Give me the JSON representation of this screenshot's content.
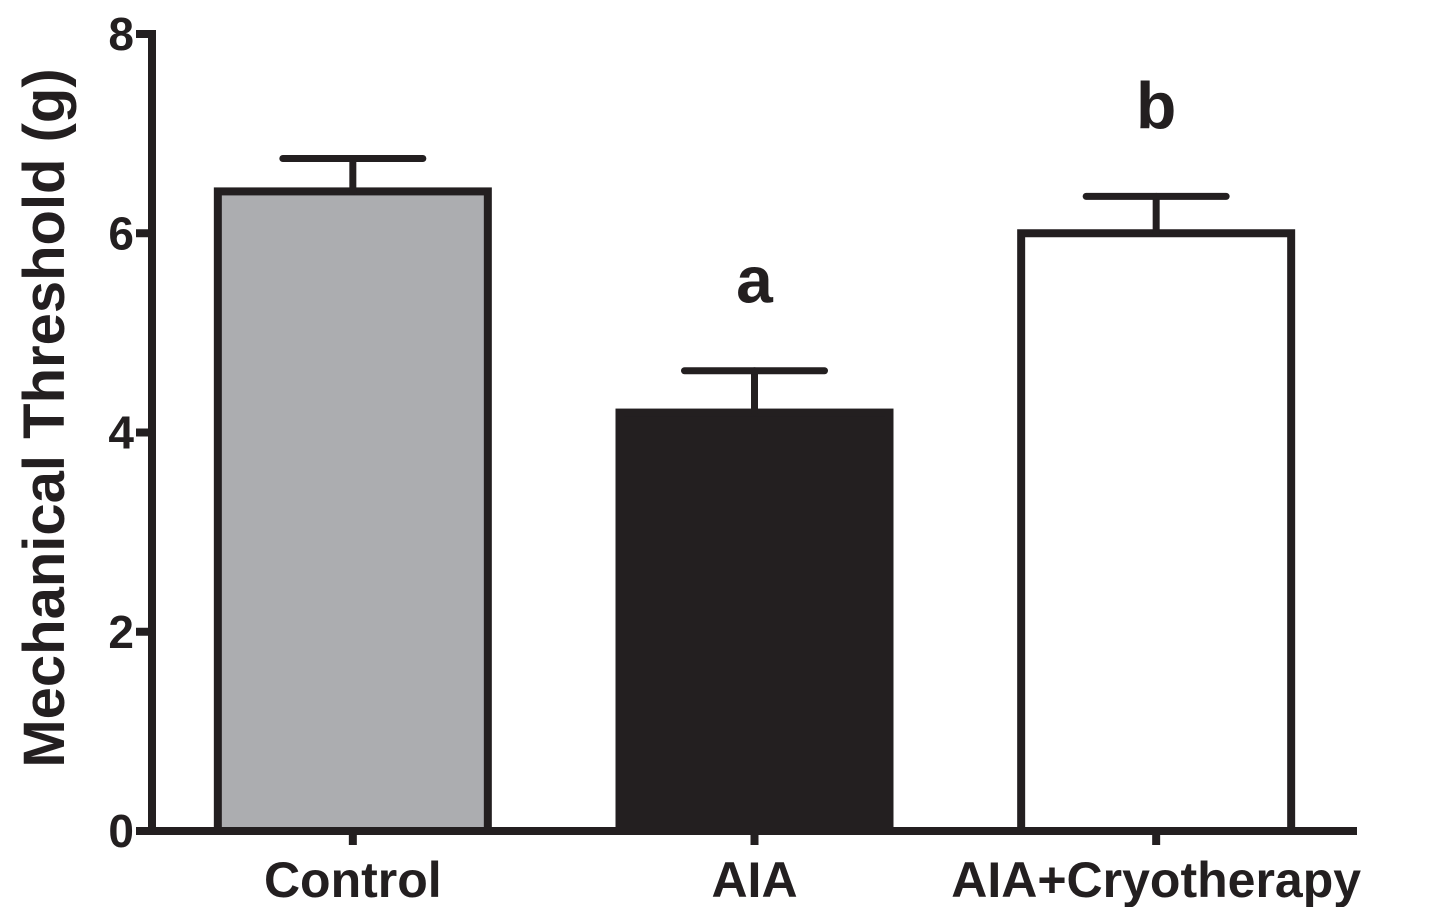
{
  "chart_data": {
    "type": "bar",
    "title": "",
    "xlabel": "",
    "ylabel": "Mechanical Threshold (g)",
    "ylim": [
      0,
      8
    ],
    "yticks": [
      "0",
      "2",
      "4",
      "6",
      "8"
    ],
    "grid": false,
    "categories": [
      "Control",
      "AIA",
      "AIA+Cryotherapy"
    ],
    "values": [
      6.42,
      4.2,
      6.0
    ],
    "errors": [
      0.33,
      0.42,
      0.37
    ],
    "annotations": [
      "",
      "a",
      "b"
    ],
    "colors": [
      "#acadb0",
      "#231f20",
      "#ffffff"
    ],
    "outline_color": "#231f20"
  }
}
